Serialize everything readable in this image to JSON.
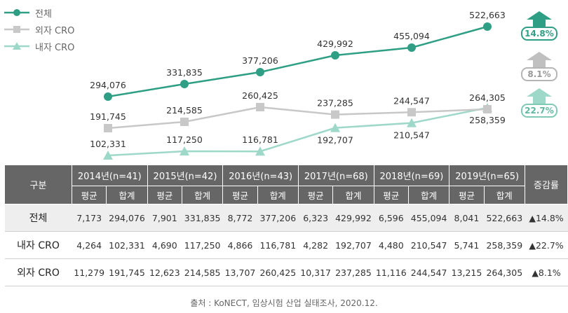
{
  "chart_data": {
    "type": "line",
    "x": [
      "2014",
      "2015",
      "2016",
      "2017",
      "2018",
      "2019"
    ],
    "series": [
      {
        "name": "전체",
        "color": "#2e9f84",
        "marker": "circle",
        "values": [
          294076,
          331835,
          377206,
          429992,
          455094,
          522663
        ],
        "labels": [
          "294,076",
          "331,835",
          "377,206",
          "429,992",
          "455,094",
          "522,663"
        ]
      },
      {
        "name": "외자 CRO",
        "color": "#c8c8c8",
        "marker": "square",
        "values": [
          191745,
          214585,
          260425,
          237285,
          244547,
          264305
        ],
        "labels": [
          "191,745",
          "214,585",
          "260,425",
          "237,285",
          "244,547",
          "264,305"
        ]
      },
      {
        "name": "내자 CRO",
        "color": "#9ed8c8",
        "marker": "triangle",
        "values": [
          102331,
          117250,
          116781,
          192707,
          210547,
          258359
        ],
        "labels": [
          "102,331",
          "117,250",
          "116,781",
          "192,707",
          "210,547",
          "258,359"
        ]
      }
    ],
    "growth_badges": [
      {
        "series": "전체",
        "text": "14.8%",
        "color": "#2e9f84"
      },
      {
        "series": "외자 CRO",
        "text": "8.1%",
        "color": "#c0c0c0"
      },
      {
        "series": "내자 CRO",
        "text": "22.7%",
        "color": "#9ed8c8"
      }
    ],
    "legend_position": "top-left",
    "grid": false
  },
  "legend": {
    "total": "전체",
    "foreign": "외자 CRO",
    "domestic": "내자 CRO"
  },
  "badges": {
    "total": "14.8%",
    "foreign": "8.1%",
    "domestic": "22.7%"
  },
  "table": {
    "corner": "구분",
    "growth_header": "증감률",
    "years": [
      "2014년(n=41)",
      "2015년(n=42)",
      "2016년(n=43)",
      "2017년(n=68)",
      "2018년(n=69)",
      "2019년(n=65)"
    ],
    "sub_avg": "평균",
    "sub_sum": "합계",
    "rows": [
      {
        "label": "전체",
        "cells": [
          "7,173",
          "294,076",
          "7,901",
          "331,835",
          "8,772",
          "377,206",
          "6,323",
          "429,992",
          "6,596",
          "455,094",
          "8,041",
          "522,663"
        ],
        "growth": "▲14.8%"
      },
      {
        "label": "내자 CRO",
        "cells": [
          "4,264",
          "102,331",
          "4,690",
          "117,250",
          "4,866",
          "116,781",
          "4,282",
          "192,707",
          "4,480",
          "210,547",
          "5,741",
          "258,359"
        ],
        "growth": "▲22.7%"
      },
      {
        "label": "외자 CRO",
        "cells": [
          "11,279",
          "191,745",
          "12,623",
          "214,585",
          "13,707",
          "260,425",
          "10,317",
          "237,285",
          "11,116",
          "244,547",
          "13,215",
          "264,305"
        ],
        "growth": "▲8.1%"
      }
    ]
  },
  "source": "출처 : KoNECT, 임상시험 산업 실태조사, 2020.12."
}
